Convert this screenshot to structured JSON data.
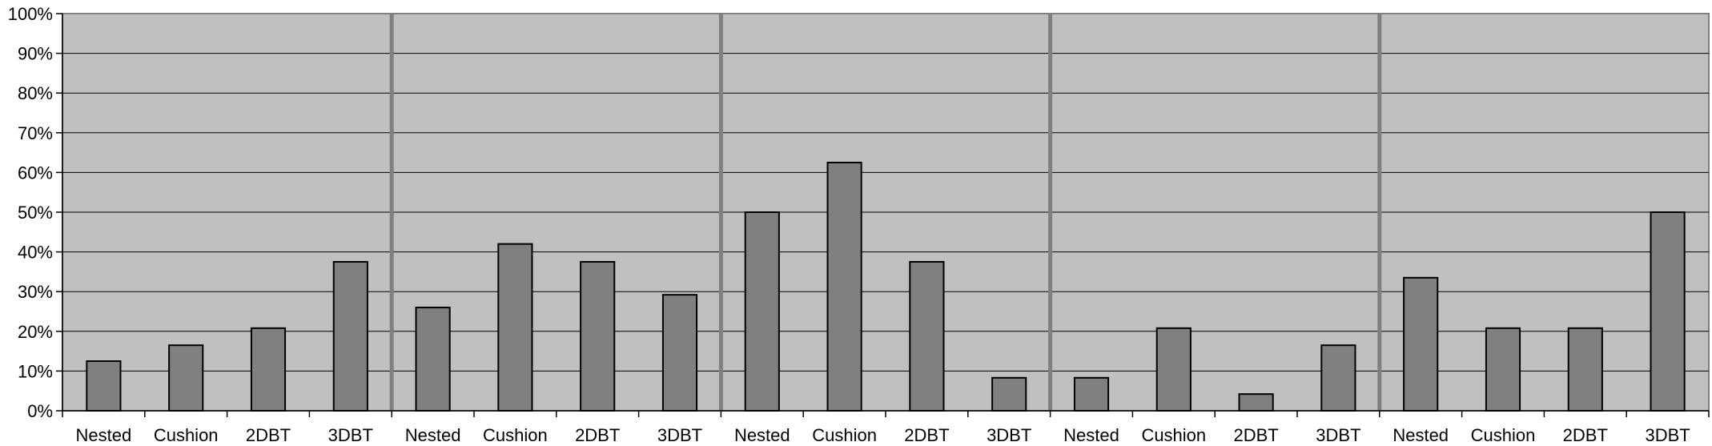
{
  "chart_data": {
    "type": "bar",
    "title": "",
    "xlabel": "",
    "ylabel": "",
    "ylim": [
      0,
      100
    ],
    "yticks": [
      "0%",
      "10%",
      "20%",
      "30%",
      "40%",
      "50%",
      "60%",
      "70%",
      "80%",
      "90%",
      "100%"
    ],
    "grid": true,
    "legend": "none",
    "categories": [
      "Nested",
      "Cushion",
      "2DBT",
      "3DBT",
      "Nested",
      "Cushion",
      "2DBT",
      "3DBT",
      "Nested",
      "Cushion",
      "2DBT",
      "3DBT",
      "Nested",
      "Cushion",
      "2DBT",
      "3DBT",
      "Nested",
      "Cushion",
      "2DBT",
      "3DBT"
    ],
    "group_size": 4,
    "values": [
      12.5,
      16.5,
      20.8,
      37.5,
      26.0,
      42.0,
      37.5,
      29.2,
      50.0,
      62.5,
      37.5,
      8.3,
      8.3,
      20.8,
      4.2,
      16.5,
      33.5,
      20.8,
      20.8,
      50.0
    ],
    "colors": {
      "plot_background": "#c0c0c0",
      "bar_fill": "#808080",
      "bar_stroke": "#000000",
      "gridline": "#000000",
      "group_separator": "#808080"
    }
  }
}
